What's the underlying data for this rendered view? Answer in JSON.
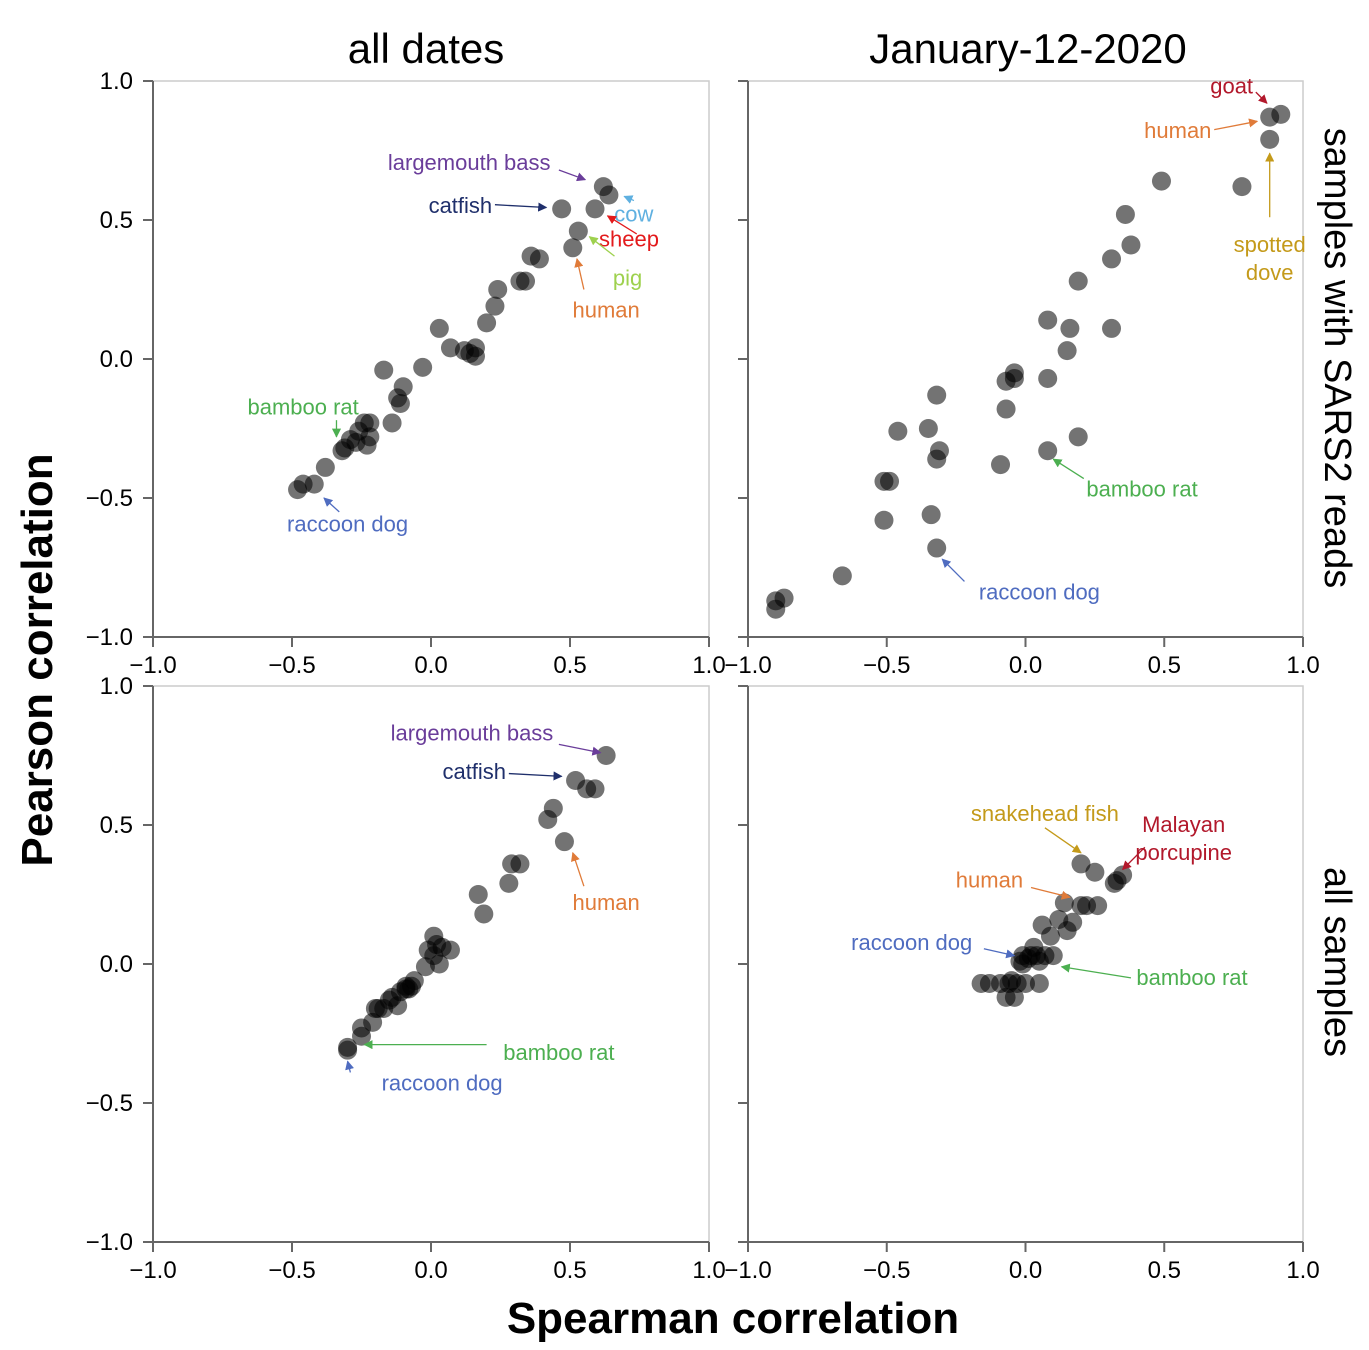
{
  "figure": {
    "xlabel": "Spearman correlation",
    "ylabel": "Pearson correlation",
    "col_titles": [
      "all dates",
      "January-12-2020"
    ],
    "row_titles": [
      "samples with SARS2 reads",
      "all samples"
    ]
  },
  "chart_data": [
    {
      "type": "scatter",
      "panel": "top-left",
      "column": "all dates",
      "row": "samples with SARS2 reads",
      "xlim": [
        -1,
        1
      ],
      "ylim": [
        -1,
        1
      ],
      "xticks": [
        "−1.0",
        "−0.5",
        "0.0",
        "0.5",
        "1.0"
      ],
      "yticks": [
        "−1.0",
        "−0.5",
        "0.0",
        "0.5",
        "1.0"
      ],
      "points": [
        [
          -0.48,
          -0.47
        ],
        [
          -0.46,
          -0.45
        ],
        [
          -0.42,
          -0.45
        ],
        [
          -0.38,
          -0.39
        ],
        [
          -0.32,
          -0.33
        ],
        [
          -0.31,
          -0.32
        ],
        [
          -0.29,
          -0.29
        ],
        [
          -0.27,
          -0.3
        ],
        [
          -0.26,
          -0.26
        ],
        [
          -0.24,
          -0.23
        ],
        [
          -0.23,
          -0.31
        ],
        [
          -0.22,
          -0.23
        ],
        [
          -0.22,
          -0.28
        ],
        [
          -0.17,
          -0.04
        ],
        [
          -0.14,
          -0.23
        ],
        [
          -0.12,
          -0.14
        ],
        [
          -0.11,
          -0.16
        ],
        [
          -0.1,
          -0.1
        ],
        [
          -0.03,
          -0.03
        ],
        [
          0.03,
          0.11
        ],
        [
          0.07,
          0.04
        ],
        [
          0.12,
          0.03
        ],
        [
          0.14,
          0.02
        ],
        [
          0.16,
          0.01
        ],
        [
          0.16,
          0.04
        ],
        [
          0.2,
          0.13
        ],
        [
          0.23,
          0.19
        ],
        [
          0.24,
          0.25
        ],
        [
          0.32,
          0.28
        ],
        [
          0.34,
          0.28
        ],
        [
          0.36,
          0.37
        ],
        [
          0.39,
          0.36
        ],
        [
          0.47,
          0.54
        ],
        [
          0.51,
          0.4
        ],
        [
          0.53,
          0.46
        ],
        [
          0.59,
          0.54
        ],
        [
          0.62,
          0.62
        ],
        [
          0.64,
          0.59
        ]
      ],
      "annotations": [
        {
          "label": "largemouth bass",
          "color": "#6a3d9a"
        },
        {
          "label": "catfish",
          "color": "#1f2f6b"
        },
        {
          "label": "cow",
          "color": "#5fb0e0"
        },
        {
          "label": "sheep",
          "color": "#e31a1c"
        },
        {
          "label": "pig",
          "color": "#9ed14e"
        },
        {
          "label": "human",
          "color": "#e07b39"
        },
        {
          "label": "bamboo rat",
          "color": "#4caf50"
        },
        {
          "label": "raccoon dog",
          "color": "#4f6cc0"
        }
      ]
    },
    {
      "type": "scatter",
      "panel": "top-right",
      "column": "January-12-2020",
      "row": "samples with SARS2 reads",
      "xlim": [
        -1,
        1
      ],
      "ylim": [
        -1,
        1
      ],
      "xticks": [
        "−1.0",
        "−0.5",
        "0.0",
        "0.5",
        "1.0"
      ],
      "yticks": [
        "−1.0",
        "−0.5",
        "0.0",
        "0.5",
        "1.0"
      ],
      "points": [
        [
          -0.9,
          -0.9
        ],
        [
          -0.9,
          -0.87
        ],
        [
          -0.87,
          -0.86
        ],
        [
          -0.66,
          -0.78
        ],
        [
          -0.51,
          -0.58
        ],
        [
          -0.51,
          -0.44
        ],
        [
          -0.49,
          -0.44
        ],
        [
          -0.46,
          -0.26
        ],
        [
          -0.35,
          -0.25
        ],
        [
          -0.34,
          -0.56
        ],
        [
          -0.32,
          -0.68
        ],
        [
          -0.32,
          -0.36
        ],
        [
          -0.32,
          -0.13
        ],
        [
          -0.31,
          -0.33
        ],
        [
          -0.09,
          -0.38
        ],
        [
          -0.07,
          -0.18
        ],
        [
          -0.07,
          -0.08
        ],
        [
          -0.04,
          -0.07
        ],
        [
          -0.04,
          -0.05
        ],
        [
          0.08,
          0.14
        ],
        [
          0.08,
          -0.07
        ],
        [
          0.08,
          -0.33
        ],
        [
          0.15,
          0.03
        ],
        [
          0.16,
          0.11
        ],
        [
          0.19,
          0.28
        ],
        [
          0.19,
          -0.28
        ],
        [
          0.31,
          0.11
        ],
        [
          0.31,
          0.36
        ],
        [
          0.36,
          0.52
        ],
        [
          0.38,
          0.41
        ],
        [
          0.49,
          0.64
        ],
        [
          0.78,
          0.62
        ],
        [
          0.88,
          0.79
        ],
        [
          0.88,
          0.87
        ],
        [
          0.92,
          0.88
        ]
      ],
      "annotations": [
        {
          "label": "goat",
          "color": "#b2182b"
        },
        {
          "label": "human",
          "color": "#e07b39"
        },
        {
          "label": "spotted",
          "color": "#c49a1a"
        },
        {
          "label": "dove",
          "color": "#c49a1a"
        },
        {
          "label": "bamboo rat",
          "color": "#4caf50"
        },
        {
          "label": "raccoon dog",
          "color": "#4f6cc0"
        }
      ]
    },
    {
      "type": "scatter",
      "panel": "bottom-left",
      "column": "all dates",
      "row": "all samples",
      "xlim": [
        -1,
        1
      ],
      "ylim": [
        -1,
        1
      ],
      "xticks": [
        "−1.0",
        "−0.5",
        "0.0",
        "0.5",
        "1.0"
      ],
      "yticks": [
        "−1.0",
        "−0.5",
        "0.0",
        "0.5",
        "1.0"
      ],
      "points": [
        [
          -0.3,
          -0.31
        ],
        [
          -0.3,
          -0.3
        ],
        [
          -0.25,
          -0.26
        ],
        [
          -0.25,
          -0.23
        ],
        [
          -0.21,
          -0.21
        ],
        [
          -0.2,
          -0.16
        ],
        [
          -0.19,
          -0.16
        ],
        [
          -0.17,
          -0.16
        ],
        [
          -0.15,
          -0.13
        ],
        [
          -0.14,
          -0.12
        ],
        [
          -0.12,
          -0.15
        ],
        [
          -0.11,
          -0.1
        ],
        [
          -0.09,
          -0.08
        ],
        [
          -0.09,
          -0.09
        ],
        [
          -0.08,
          -0.09
        ],
        [
          -0.07,
          -0.08
        ],
        [
          -0.06,
          -0.06
        ],
        [
          -0.02,
          -0.01
        ],
        [
          -0.01,
          0.05
        ],
        [
          0.01,
          0.1
        ],
        [
          0.01,
          0.03
        ],
        [
          0.02,
          0.07
        ],
        [
          0.03,
          0.0
        ],
        [
          0.04,
          0.06
        ],
        [
          0.07,
          0.05
        ],
        [
          0.17,
          0.25
        ],
        [
          0.19,
          0.18
        ],
        [
          0.28,
          0.29
        ],
        [
          0.29,
          0.36
        ],
        [
          0.32,
          0.36
        ],
        [
          0.42,
          0.52
        ],
        [
          0.44,
          0.56
        ],
        [
          0.48,
          0.44
        ],
        [
          0.52,
          0.66
        ],
        [
          0.56,
          0.63
        ],
        [
          0.59,
          0.63
        ],
        [
          0.63,
          0.75
        ]
      ],
      "annotations": [
        {
          "label": "largemouth bass",
          "color": "#6a3d9a"
        },
        {
          "label": "catfish",
          "color": "#1f2f6b"
        },
        {
          "label": "human",
          "color": "#e07b39"
        },
        {
          "label": "bamboo rat",
          "color": "#4caf50"
        },
        {
          "label": "raccoon dog",
          "color": "#4f6cc0"
        }
      ]
    },
    {
      "type": "scatter",
      "panel": "bottom-right",
      "column": "January-12-2020",
      "row": "all samples",
      "xlim": [
        -1,
        1
      ],
      "ylim": [
        -1,
        1
      ],
      "xticks": [
        "−1.0",
        "−0.5",
        "0.0",
        "0.5",
        "1.0"
      ],
      "yticks": [
        "−1.0",
        "−0.5",
        "0.0",
        "0.5",
        "1.0"
      ],
      "points": [
        [
          -0.16,
          -0.07
        ],
        [
          -0.13,
          -0.07
        ],
        [
          -0.09,
          -0.07
        ],
        [
          -0.07,
          -0.12
        ],
        [
          -0.06,
          -0.07
        ],
        [
          -0.05,
          -0.06
        ],
        [
          -0.04,
          -0.12
        ],
        [
          -0.03,
          -0.07
        ],
        [
          -0.02,
          0.01
        ],
        [
          -0.01,
          0.0
        ],
        [
          -0.01,
          0.03
        ],
        [
          0.0,
          -0.07
        ],
        [
          0.01,
          0.02
        ],
        [
          0.02,
          0.03
        ],
        [
          0.03,
          0.06
        ],
        [
          0.04,
          0.03
        ],
        [
          0.05,
          0.01
        ],
        [
          0.05,
          -0.07
        ],
        [
          0.06,
          0.14
        ],
        [
          0.07,
          0.03
        ],
        [
          0.09,
          0.1
        ],
        [
          0.1,
          0.03
        ],
        [
          0.12,
          0.16
        ],
        [
          0.14,
          0.22
        ],
        [
          0.15,
          0.12
        ],
        [
          0.17,
          0.15
        ],
        [
          0.2,
          0.36
        ],
        [
          0.2,
          0.21
        ],
        [
          0.22,
          0.21
        ],
        [
          0.25,
          0.33
        ],
        [
          0.26,
          0.21
        ],
        [
          0.32,
          0.29
        ],
        [
          0.33,
          0.3
        ],
        [
          0.35,
          0.32
        ]
      ],
      "annotations": [
        {
          "label": "snakehead fish",
          "color": "#c49a1a"
        },
        {
          "label": "Malayan",
          "color": "#b2182b"
        },
        {
          "label": "porcupine",
          "color": "#b2182b"
        },
        {
          "label": "human",
          "color": "#e07b39"
        },
        {
          "label": "raccoon dog",
          "color": "#4f6cc0"
        },
        {
          "label": "bamboo rat",
          "color": "#4caf50"
        }
      ]
    }
  ]
}
